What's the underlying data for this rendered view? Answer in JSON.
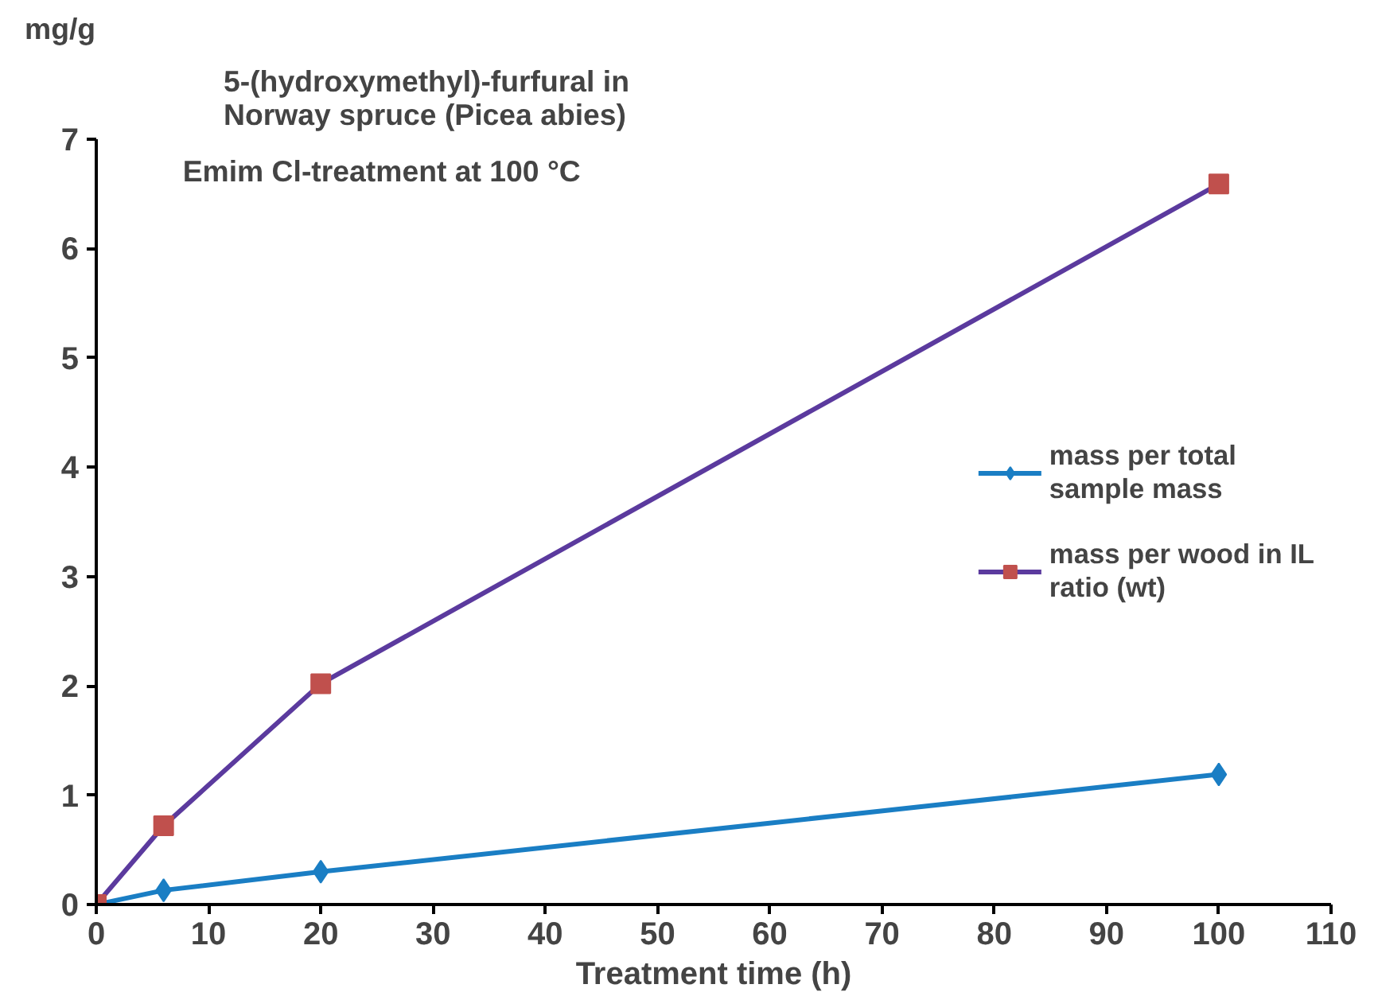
{
  "chart_data": {
    "type": "line",
    "title": "5-(hydroxymethyl)-furfural in\nNorway spruce (Picea abies)",
    "ylabel": "mg/g",
    "xlabel": "Treatment time (h)",
    "annotations": [
      "Emim Cl-treatment at 100 °C"
    ],
    "x": [
      0,
      6,
      20,
      100
    ],
    "series": [
      {
        "name": "mass per total\nsample mass",
        "color": "#1a7ec4",
        "values": [
          0,
          0.13,
          0.3,
          1.19
        ],
        "marker": "diamond"
      },
      {
        "name": "mass per wood in IL\nratio (wt)",
        "color": "#5b3a9e",
        "values": [
          0,
          0.72,
          2.02,
          6.59
        ],
        "marker": "square"
      }
    ],
    "xlim": [
      0,
      110
    ],
    "xticks": [
      0,
      10,
      20,
      30,
      40,
      50,
      60,
      70,
      80,
      90,
      100,
      110
    ],
    "ylim": [
      0,
      7
    ],
    "yticks": [
      0,
      1,
      2,
      3,
      4,
      5,
      6,
      7
    ],
    "grid": false,
    "legend": "right",
    "line_style": "solid"
  }
}
